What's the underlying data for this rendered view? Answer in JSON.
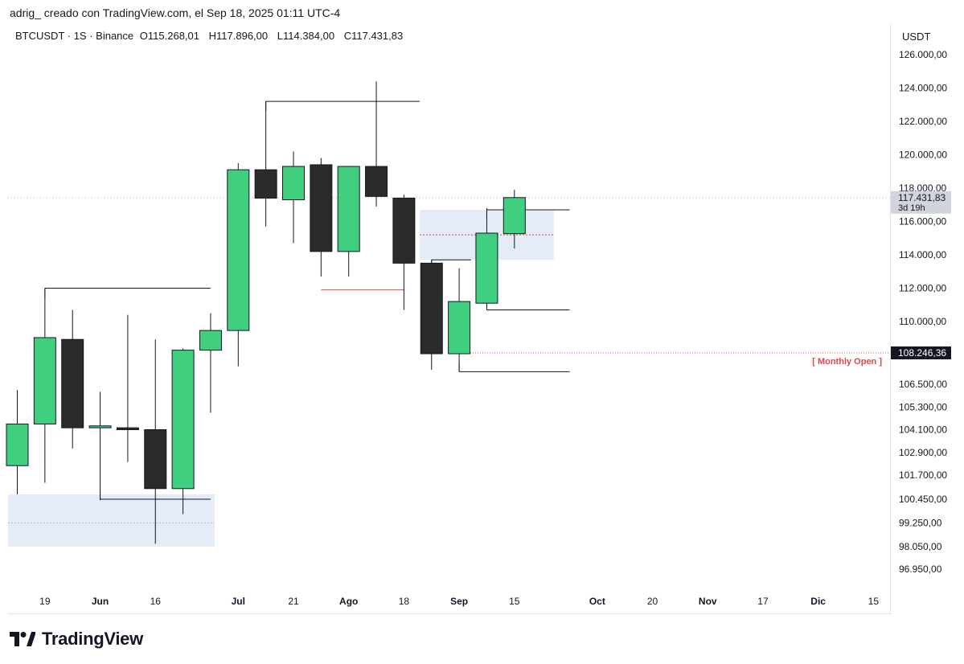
{
  "header": {
    "caption": "adrig_ creado con TradingView.com, el Sep 18, 2025 01:11 UTC-4"
  },
  "legend": {
    "symbol": "BTCUSDT · 1S · Binance",
    "open_label": "O",
    "open": "115.268,01",
    "high_label": "H",
    "high": "117.896,00",
    "low_label": "L",
    "low": "114.384,00",
    "close_label": "C",
    "close": "117.431,83"
  },
  "currency": "USDT",
  "brand": {
    "name": "TradingView",
    "logo_icon": "tradingview-logo-icon"
  },
  "colors": {
    "up": "#3fcf7f",
    "down": "#2b2b2b",
    "zone": "#e3ecf7",
    "accent_red": "#e0464f"
  },
  "chart_data": {
    "type": "candlestick",
    "title": "",
    "y_ticks": [
      {
        "v": 126000,
        "label": "126.000,00"
      },
      {
        "v": 124000,
        "label": "124.000,00"
      },
      {
        "v": 122000,
        "label": "122.000,00"
      },
      {
        "v": 120000,
        "label": "120.000,00"
      },
      {
        "v": 118000,
        "label": "118.000,00"
      },
      {
        "v": 116000,
        "label": "116.000,00"
      },
      {
        "v": 114000,
        "label": "114.000,00"
      },
      {
        "v": 112000,
        "label": "112.000,00"
      },
      {
        "v": 110000,
        "label": "110.000,00"
      },
      {
        "v": 106500,
        "label": "106.500,00"
      },
      {
        "v": 105300,
        "label": "105.300,00"
      },
      {
        "v": 104100,
        "label": "104.100,00"
      },
      {
        "v": 102900,
        "label": "102.900,00"
      },
      {
        "v": 101700,
        "label": "101.700,00"
      },
      {
        "v": 100450,
        "label": "100.450,00"
      },
      {
        "v": 99250,
        "label": "99.250,00"
      },
      {
        "v": 98050,
        "label": "98.050,00"
      },
      {
        "v": 96950,
        "label": "96.950,00"
      }
    ],
    "x_ticks": [
      {
        "date": "2025-05-19",
        "label": "19",
        "bold": false
      },
      {
        "date": "2025-06-02",
        "label": "Jun",
        "bold": true
      },
      {
        "date": "2025-06-16",
        "label": "16",
        "bold": false
      },
      {
        "date": "2025-07-07",
        "label": "Jul",
        "bold": true
      },
      {
        "date": "2025-07-21",
        "label": "21",
        "bold": false
      },
      {
        "date": "2025-08-04",
        "label": "Ago",
        "bold": true
      },
      {
        "date": "2025-08-18",
        "label": "18",
        "bold": false
      },
      {
        "date": "2025-09-01",
        "label": "Sep",
        "bold": true
      },
      {
        "date": "2025-09-15",
        "label": "15",
        "bold": false
      },
      {
        "date": "2025-10-06",
        "label": "Oct",
        "bold": true
      },
      {
        "date": "2025-10-20",
        "label": "20",
        "bold": false
      },
      {
        "date": "2025-11-03",
        "label": "Nov",
        "bold": true
      },
      {
        "date": "2025-11-17",
        "label": "17",
        "bold": false
      },
      {
        "date": "2025-12-01",
        "label": "Dic",
        "bold": true
      },
      {
        "date": "2025-12-15",
        "label": "15",
        "bold": false
      }
    ],
    "candles": [
      {
        "date": "2025-05-12",
        "o": 102200,
        "h": 106200,
        "l": 100700,
        "c": 104400
      },
      {
        "date": "2025-05-19",
        "o": 104400,
        "h": 112000,
        "l": 101300,
        "c": 109100
      },
      {
        "date": "2025-05-26",
        "o": 109000,
        "h": 110700,
        "l": 103100,
        "c": 104200
      },
      {
        "date": "2025-06-02",
        "o": 104200,
        "h": 106100,
        "l": 100400,
        "c": 104300
      },
      {
        "date": "2025-06-09",
        "o": 104200,
        "h": 110400,
        "l": 102400,
        "c": 104100
      },
      {
        "date": "2025-06-16",
        "o": 104100,
        "h": 109000,
        "l": 98200,
        "c": 101000
      },
      {
        "date": "2025-06-23",
        "o": 101000,
        "h": 108500,
        "l": 99700,
        "c": 108400
      },
      {
        "date": "2025-06-30",
        "o": 108400,
        "h": 110500,
        "l": 105000,
        "c": 109500
      },
      {
        "date": "2025-07-07",
        "o": 109500,
        "h": 119500,
        "l": 107500,
        "c": 119100
      },
      {
        "date": "2025-07-14",
        "o": 119100,
        "h": 123200,
        "l": 115700,
        "c": 117400
      },
      {
        "date": "2025-07-21",
        "o": 117300,
        "h": 120200,
        "l": 114700,
        "c": 119300
      },
      {
        "date": "2025-07-28",
        "o": 119400,
        "h": 119800,
        "l": 112700,
        "c": 114200
      },
      {
        "date": "2025-08-04",
        "o": 114200,
        "h": 119300,
        "l": 112700,
        "c": 119300
      },
      {
        "date": "2025-08-11",
        "o": 119300,
        "h": 124400,
        "l": 116900,
        "c": 117500
      },
      {
        "date": "2025-08-18",
        "o": 117400,
        "h": 117600,
        "l": 110700,
        "c": 113500
      },
      {
        "date": "2025-08-25",
        "o": 113500,
        "h": 113700,
        "l": 107300,
        "c": 108200
      },
      {
        "date": "2025-09-01",
        "o": 108200,
        "h": 113200,
        "l": 107200,
        "c": 111200
      },
      {
        "date": "2025-09-08",
        "o": 111100,
        "h": 116800,
        "l": 110800,
        "c": 115300
      },
      {
        "date": "2025-09-15",
        "o": 115268.01,
        "h": 117896.0,
        "l": 114384.0,
        "c": 117431.83
      }
    ],
    "last_price": {
      "value": 117431.83,
      "label": "117.431,83",
      "countdown": "3d 19h"
    },
    "monthly_open": {
      "value": 108246.36,
      "label": "108.246,36",
      "text": "[ Monthly Open ]"
    },
    "zones": [
      {
        "x0": "2025-05-09",
        "x1": "2025-07-01",
        "top": 100700,
        "bottom": 98050,
        "mid": 99250
      },
      {
        "x0": "2025-08-22",
        "x1": "2025-09-25",
        "top": 116700,
        "bottom": 113700,
        "mid": 115200
      }
    ],
    "level_lines": [
      {
        "x0": "2025-05-19",
        "x1": "2025-06-30",
        "y": 112000,
        "tick": "down"
      },
      {
        "x0": "2025-06-02",
        "x1": "2025-06-30",
        "y": 100450,
        "tick": "up"
      },
      {
        "x0": "2025-07-14",
        "x1": "2025-08-22",
        "y": 123200,
        "tick": "down"
      },
      {
        "x0": "2025-08-25",
        "x1": "2025-09-04",
        "y": 113700,
        "tick": "down"
      },
      {
        "x0": "2025-09-01",
        "x1": "2025-09-29",
        "y": 107200,
        "tick": "up"
      },
      {
        "x0": "2025-09-08",
        "x1": "2025-09-29",
        "y": 110700,
        "tick": "up"
      },
      {
        "x0": "2025-09-08",
        "x1": "2025-09-29",
        "y": 116700,
        "tick": "down"
      },
      {
        "x0": "2025-07-28",
        "x1": "2025-08-18",
        "y": 111900,
        "tick": "none",
        "color": "red"
      }
    ]
  }
}
